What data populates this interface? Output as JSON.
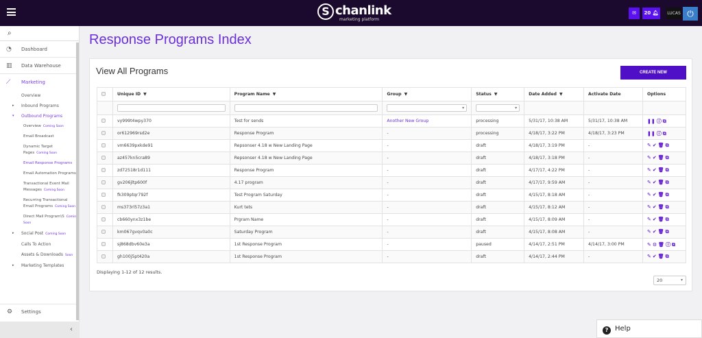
{
  "topbar": {
    "brand": "chanlink",
    "brand_sub": "marketing platform",
    "notification_count": "20",
    "user": "LUCAS"
  },
  "sidebar": {
    "main": [
      {
        "label": "Dashboard",
        "icon": "dashboard-icon"
      },
      {
        "label": "Data Warehouse",
        "icon": "warehouse-icon"
      },
      {
        "label": "Marketing",
        "icon": "chart-line-icon"
      }
    ],
    "items": [
      {
        "label": "Overview",
        "level": 1
      },
      {
        "label": "Inbound Programs",
        "level": 1,
        "arrow": "▸"
      },
      {
        "label": "Outbound Programs",
        "level": 1,
        "arrow": "▾",
        "active": true
      },
      {
        "label": "Overview",
        "level": 2,
        "soon": "Coming Soon"
      },
      {
        "label": "Email Broadcast",
        "level": 2
      },
      {
        "label": "Dynamic Target Pages",
        "level": 2,
        "soon": "Coming Soon"
      },
      {
        "label": "Email Response Programs",
        "level": 2,
        "active": true
      },
      {
        "label": "Email Automation Programs",
        "level": 2
      },
      {
        "label": "Transactional Event Mail Messages",
        "level": 2,
        "soon": "Coming Soon"
      },
      {
        "label": "Recurring Transactional Email Programs",
        "level": 2,
        "soon": "Coming Soon"
      },
      {
        "label": "Direct Mail Program\\S",
        "level": 2,
        "soon": "Coming Soon"
      },
      {
        "label": "Social Post",
        "level": 1,
        "arrow": "▸",
        "soon": "Coming Soon"
      },
      {
        "label": "Calls To Action",
        "level": 1
      },
      {
        "label": "Assets & Downloads",
        "level": 1,
        "soon": "Soon"
      },
      {
        "label": "Marketing Templates",
        "level": 1,
        "arrow": "▸"
      }
    ],
    "settings": "Settings"
  },
  "page": {
    "title": "Response Programs Index",
    "card_title": "View All Programs",
    "create_label": "CREATE NEW",
    "footer": "Displaying 1-12 of 12 results.",
    "page_size": "20",
    "help": "Help"
  },
  "table": {
    "columns": [
      "Unique ID",
      "Program Name",
      "Group",
      "Status",
      "Date Added",
      "Activate Date",
      "Options"
    ],
    "sortable": [
      true,
      true,
      true,
      true,
      true,
      false,
      false
    ],
    "rows": [
      {
        "id": "vy999t4wpy370",
        "name": "Test for sends",
        "group": "Another New Group",
        "status": "processing",
        "added": "5/31/17, 10:38 AM",
        "activate": "5/31/17, 10:38 AM",
        "options": [
          "pause",
          "info",
          "copy"
        ]
      },
      {
        "id": "or612969rsd2e",
        "name": "Response Program",
        "group": "-",
        "status": "processing",
        "added": "4/18/17, 3:22 PM",
        "activate": "4/18/17, 3:23 PM",
        "options": [
          "pause",
          "info",
          "copy"
        ]
      },
      {
        "id": "vm6639pxkde91",
        "name": "Repsonser 4.18 w New Landing Page",
        "group": "-",
        "status": "draft",
        "added": "4/18/17, 3:19 PM",
        "activate": "-",
        "options": [
          "edit",
          "check",
          "trash",
          "copy"
        ]
      },
      {
        "id": "az457kn5cra89",
        "name": "Repsonser 4.18 w New Landing Page",
        "group": "-",
        "status": "draft",
        "added": "4/18/17, 3:18 PM",
        "activate": "-",
        "options": [
          "edit",
          "check",
          "trash",
          "copy"
        ]
      },
      {
        "id": "zd72518r1d111",
        "name": "Response Program",
        "group": "-",
        "status": "draft",
        "added": "4/17/17, 4:22 PM",
        "activate": "-",
        "options": [
          "edit",
          "check",
          "trash",
          "copy"
        ]
      },
      {
        "id": "gv206jltp600f",
        "name": "4.17 program",
        "group": "-",
        "status": "draft",
        "added": "4/17/17, 9:59 AM",
        "activate": "-",
        "options": [
          "edit",
          "check",
          "trash",
          "copy"
        ]
      },
      {
        "id": "fk309ptqr792f",
        "name": "Test Program Saturday",
        "group": "-",
        "status": "draft",
        "added": "4/15/17, 8:18 AM",
        "activate": "-",
        "options": [
          "edit",
          "check",
          "trash",
          "copy"
        ]
      },
      {
        "id": "ms373rl57z3a1",
        "name": "Kurt tets",
        "group": "-",
        "status": "draft",
        "added": "4/15/17, 8:12 AM",
        "activate": "-",
        "options": [
          "edit",
          "check",
          "trash",
          "copy"
        ]
      },
      {
        "id": "cb660ynx3z1be",
        "name": "Prgram Name",
        "group": "-",
        "status": "draft",
        "added": "4/15/17, 8:09 AM",
        "activate": "-",
        "options": [
          "edit",
          "check",
          "trash",
          "copy"
        ]
      },
      {
        "id": "km067gvqv0a0c",
        "name": "Saturday Program",
        "group": "-",
        "status": "draft",
        "added": "4/15/17, 8:08 AM",
        "activate": "-",
        "options": [
          "edit",
          "check",
          "trash",
          "copy"
        ]
      },
      {
        "id": "sj868dbv60e3a",
        "name": "1st Response Program",
        "group": "-",
        "status": "paused",
        "added": "4/14/17, 2:51 PM",
        "activate": "4/14/17, 3:00 PM",
        "options": [
          "edit",
          "play",
          "trash",
          "info",
          "copy"
        ]
      },
      {
        "id": "gh100j5pt420a",
        "name": "1st Response Program",
        "group": "-",
        "status": "draft",
        "added": "4/14/17, 2:44 PM",
        "activate": "-",
        "options": [
          "edit",
          "check",
          "trash",
          "copy"
        ]
      }
    ]
  },
  "colors": {
    "accent": "#6a2fd9",
    "topbar": "#1b0a2e",
    "button": "#4e0fc7"
  }
}
